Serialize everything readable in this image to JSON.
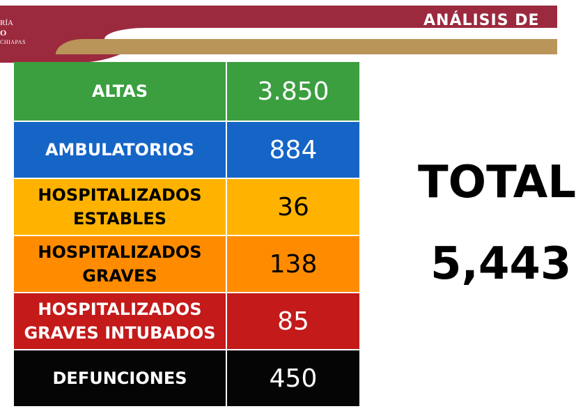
{
  "header": {
    "logo": {
      "line1": "RÍA",
      "line2": "O",
      "line3": "CHIAPAS"
    },
    "title": "ANÁLISIS DE",
    "colors": {
      "maroon": "#9b2a3e",
      "gold": "#b9955a"
    }
  },
  "table": {
    "rows": [
      {
        "label": "ALTAS",
        "value": "3.850",
        "color": "#3b9e3f"
      },
      {
        "label": "AMBULATORIOS",
        "value": "884",
        "color": "#1565c7"
      },
      {
        "label_line1": "HOSPITALIZADOS",
        "label_line2": "ESTABLES",
        "value": "36",
        "color": "#ffb300"
      },
      {
        "label_line1": "HOSPITALIZADOS",
        "label_line2": "GRAVES",
        "value": "138",
        "color": "#ff8c00"
      },
      {
        "label_line1": "HOSPITALIZADOS",
        "label_line2": "GRAVES INTUBADOS",
        "value": "85",
        "color": "#c41a1a"
      },
      {
        "label": "DEFUNCIONES",
        "value": "450",
        "color": "#050505"
      }
    ]
  },
  "total": {
    "label": "TOTAL",
    "value": "5,443"
  }
}
